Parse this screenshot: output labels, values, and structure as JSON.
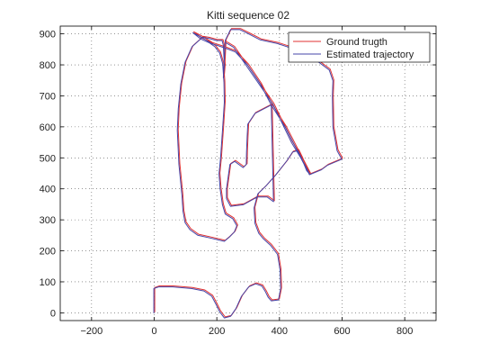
{
  "chart_data": {
    "type": "line",
    "title": "Kitti sequence 02",
    "xlabel": "",
    "ylabel": "",
    "xlim": [
      -300,
      900
    ],
    "ylim": [
      -25,
      925
    ],
    "xticks": [
      -200,
      0,
      200,
      400,
      600,
      800
    ],
    "yticks": [
      0,
      100,
      200,
      300,
      400,
      500,
      600,
      700,
      800,
      900
    ],
    "xtick_labels": [
      "−200",
      "0",
      "200",
      "400",
      "600",
      "800"
    ],
    "ytick_labels": [
      "0",
      "100",
      "200",
      "300",
      "400",
      "500",
      "600",
      "700",
      "800",
      "900"
    ],
    "grid": true,
    "grid_style": "dotted",
    "legend_position": "top-right",
    "series": [
      {
        "name": "Ground trugth",
        "color": "#e03030",
        "points": [
          [
            0,
            0
          ],
          [
            0,
            40
          ],
          [
            0,
            80
          ],
          [
            15,
            85
          ],
          [
            60,
            85
          ],
          [
            120,
            80
          ],
          [
            160,
            72
          ],
          [
            185,
            55
          ],
          [
            198,
            30
          ],
          [
            210,
            5
          ],
          [
            225,
            -15
          ],
          [
            245,
            -10
          ],
          [
            262,
            15
          ],
          [
            280,
            55
          ],
          [
            303,
            85
          ],
          [
            325,
            95
          ],
          [
            345,
            88
          ],
          [
            356,
            70
          ],
          [
            365,
            52
          ],
          [
            375,
            40
          ],
          [
            398,
            43
          ],
          [
            405,
            80
          ],
          [
            403,
            140
          ],
          [
            395,
            190
          ],
          [
            372,
            220
          ],
          [
            350,
            240
          ],
          [
            335,
            258
          ],
          [
            323,
            290
          ],
          [
            320,
            340
          ],
          [
            332,
            385
          ],
          [
            357,
            410
          ],
          [
            388,
            445
          ],
          [
            425,
            492
          ],
          [
            443,
            520
          ],
          [
            460,
            525
          ],
          [
            472,
            500
          ],
          [
            488,
            460
          ],
          [
            497,
            450
          ],
          [
            453,
            535
          ],
          [
            420,
            600
          ],
          [
            375,
            672
          ],
          [
            323,
            645
          ],
          [
            300,
            610
          ],
          [
            298,
            570
          ],
          [
            296,
            520
          ],
          [
            295,
            480
          ],
          [
            285,
            470
          ],
          [
            258,
            490
          ],
          [
            243,
            480
          ],
          [
            232,
            400
          ],
          [
            232,
            370
          ],
          [
            245,
            345
          ],
          [
            285,
            350
          ],
          [
            330,
            375
          ],
          [
            362,
            375
          ],
          [
            382,
            360
          ],
          [
            375,
            672
          ],
          [
            340,
            740
          ],
          [
            300,
            800
          ],
          [
            260,
            843
          ],
          [
            230,
            855
          ],
          [
            185,
            870
          ],
          [
            148,
            893
          ],
          [
            125,
            905
          ],
          [
            150,
            885
          ],
          [
            178,
            872
          ],
          [
            195,
            860
          ],
          [
            210,
            840
          ],
          [
            220,
            805
          ],
          [
            224,
            745
          ],
          [
            225,
            680
          ],
          [
            220,
            600
          ],
          [
            213,
            500
          ],
          [
            208,
            450
          ],
          [
            212,
            400
          ],
          [
            219,
            350
          ],
          [
            228,
            320
          ],
          [
            252,
            305
          ],
          [
            265,
            282
          ],
          [
            257,
            262
          ],
          [
            240,
            245
          ],
          [
            225,
            232
          ],
          [
            180,
            243
          ],
          [
            140,
            252
          ],
          [
            115,
            270
          ],
          [
            100,
            292
          ],
          [
            93,
            330
          ],
          [
            90,
            380
          ],
          [
            80,
            480
          ],
          [
            75,
            590
          ],
          [
            78,
            660
          ],
          [
            86,
            740
          ],
          [
            100,
            810
          ],
          [
            122,
            860
          ],
          [
            155,
            890
          ],
          [
            175,
            887
          ],
          [
            200,
            880
          ],
          [
            218,
            880
          ],
          [
            222,
            865
          ],
          [
            225,
            800
          ],
          [
            222,
            760
          ],
          [
            225,
            820
          ],
          [
            228,
            880
          ],
          [
            245,
            915
          ],
          [
            275,
            915
          ],
          [
            305,
            900
          ],
          [
            340,
            882
          ],
          [
            395,
            870
          ],
          [
            455,
            850
          ],
          [
            520,
            815
          ],
          [
            560,
            785
          ],
          [
            572,
            750
          ],
          [
            570,
            700
          ],
          [
            572,
            600
          ],
          [
            585,
            525
          ],
          [
            600,
            497
          ],
          [
            555,
            478
          ],
          [
            535,
            463
          ],
          [
            497,
            447
          ],
          [
            470,
            500
          ],
          [
            440,
            550
          ],
          [
            380,
            675
          ],
          [
            255,
            858
          ],
          [
            230,
            873
          ]
        ]
      },
      {
        "name": "Estimated trajectory",
        "color": "#4646a8",
        "points": [
          [
            0,
            0
          ],
          [
            0,
            40
          ],
          [
            0,
            80
          ],
          [
            15,
            85
          ],
          [
            60,
            85
          ],
          [
            120,
            80
          ],
          [
            160,
            72
          ],
          [
            185,
            55
          ],
          [
            198,
            30
          ],
          [
            210,
            5
          ],
          [
            225,
            -15
          ],
          [
            245,
            -10
          ],
          [
            262,
            15
          ],
          [
            280,
            55
          ],
          [
            303,
            85
          ],
          [
            325,
            95
          ],
          [
            345,
            88
          ],
          [
            356,
            70
          ],
          [
            365,
            52
          ],
          [
            375,
            40
          ],
          [
            398,
            43
          ],
          [
            405,
            80
          ],
          [
            403,
            140
          ],
          [
            395,
            190
          ],
          [
            372,
            220
          ],
          [
            350,
            240
          ],
          [
            335,
            258
          ],
          [
            323,
            290
          ],
          [
            320,
            340
          ],
          [
            332,
            385
          ],
          [
            357,
            410
          ],
          [
            388,
            445
          ],
          [
            425,
            492
          ],
          [
            443,
            520
          ],
          [
            460,
            525
          ],
          [
            472,
            500
          ],
          [
            488,
            460
          ],
          [
            497,
            450
          ],
          [
            453,
            535
          ],
          [
            420,
            600
          ],
          [
            375,
            672
          ],
          [
            323,
            645
          ],
          [
            300,
            610
          ],
          [
            298,
            570
          ],
          [
            296,
            520
          ],
          [
            295,
            480
          ],
          [
            285,
            470
          ],
          [
            258,
            490
          ],
          [
            243,
            480
          ],
          [
            232,
            400
          ],
          [
            232,
            370
          ],
          [
            245,
            345
          ],
          [
            285,
            350
          ],
          [
            330,
            375
          ],
          [
            362,
            375
          ],
          [
            382,
            360
          ],
          [
            375,
            672
          ],
          [
            340,
            740
          ],
          [
            300,
            800
          ],
          [
            260,
            843
          ],
          [
            230,
            855
          ],
          [
            185,
            870
          ],
          [
            148,
            893
          ],
          [
            125,
            905
          ],
          [
            150,
            885
          ],
          [
            178,
            872
          ],
          [
            195,
            860
          ],
          [
            210,
            840
          ],
          [
            220,
            805
          ],
          [
            224,
            745
          ],
          [
            225,
            680
          ],
          [
            220,
            600
          ],
          [
            213,
            500
          ],
          [
            208,
            450
          ],
          [
            212,
            400
          ],
          [
            219,
            350
          ],
          [
            228,
            320
          ],
          [
            252,
            305
          ],
          [
            265,
            282
          ],
          [
            257,
            262
          ],
          [
            240,
            245
          ],
          [
            225,
            232
          ],
          [
            180,
            243
          ],
          [
            140,
            252
          ],
          [
            115,
            270
          ],
          [
            100,
            292
          ],
          [
            93,
            330
          ],
          [
            90,
            380
          ],
          [
            80,
            480
          ],
          [
            75,
            590
          ],
          [
            78,
            660
          ],
          [
            86,
            740
          ],
          [
            100,
            810
          ],
          [
            122,
            860
          ],
          [
            155,
            890
          ],
          [
            175,
            887
          ],
          [
            200,
            880
          ],
          [
            218,
            880
          ],
          [
            222,
            865
          ],
          [
            225,
            800
          ],
          [
            222,
            760
          ],
          [
            225,
            820
          ],
          [
            228,
            880
          ],
          [
            245,
            915
          ],
          [
            275,
            915
          ],
          [
            305,
            900
          ],
          [
            340,
            882
          ],
          [
            395,
            870
          ],
          [
            455,
            850
          ],
          [
            520,
            815
          ],
          [
            560,
            785
          ],
          [
            572,
            750
          ],
          [
            570,
            700
          ],
          [
            572,
            600
          ],
          [
            585,
            525
          ],
          [
            600,
            497
          ],
          [
            555,
            478
          ],
          [
            535,
            463
          ],
          [
            497,
            447
          ],
          [
            470,
            500
          ],
          [
            440,
            550
          ],
          [
            380,
            675
          ],
          [
            255,
            858
          ],
          [
            230,
            873
          ]
        ]
      }
    ]
  }
}
